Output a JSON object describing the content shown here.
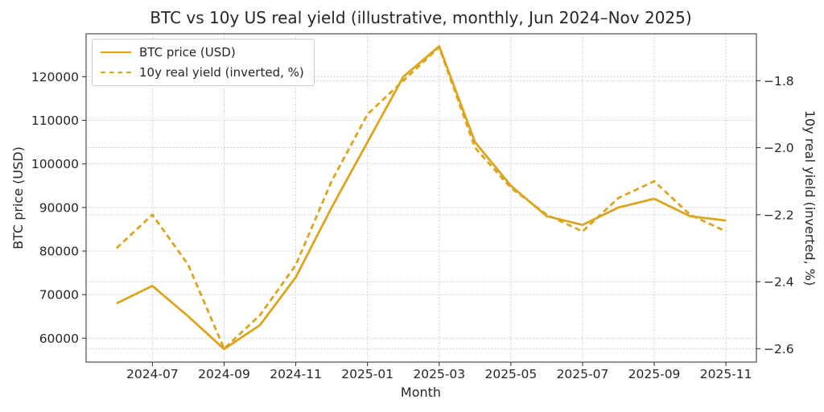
{
  "title": "BTC vs 10y US real yield (illustrative, monthly, Jun 2024–Nov 2025)",
  "colors": {
    "line": "#DAA520",
    "grid": "#c9c9c9",
    "spine": "#2b2b2b",
    "text": "#262626",
    "background": "#ffffff"
  },
  "legend": {
    "position": "upper left",
    "items": [
      {
        "label": "BTC price (USD)",
        "style": "solid"
      },
      {
        "label": "10y real yield (inverted, %)",
        "style": "dashed"
      }
    ]
  },
  "chart_data": {
    "type": "line",
    "title": "BTC vs 10y US real yield (illustrative, monthly, Jun 2024–Nov 2025)",
    "xlabel": "Month",
    "ylabel_left": "BTC price (USD)",
    "ylabel_right": "10y real yield (inverted, %)",
    "x": [
      "2024-06",
      "2024-07",
      "2024-08",
      "2024-09",
      "2024-10",
      "2024-11",
      "2024-12",
      "2025-01",
      "2025-02",
      "2025-03",
      "2025-04",
      "2025-05",
      "2025-06",
      "2025-07",
      "2025-08",
      "2025-09",
      "2025-10",
      "2025-11"
    ],
    "series": [
      {
        "name": "BTC price (USD)",
        "axis": "left",
        "style": "solid",
        "values": [
          68000,
          72000,
          65000,
          57500,
          63000,
          74000,
          90000,
          105000,
          120000,
          127000,
          105000,
          95000,
          88000,
          86000,
          90000,
          92000,
          88000,
          87000
        ]
      },
      {
        "name": "10y real yield (inverted, %)",
        "axis": "right",
        "style": "dashed",
        "values": [
          -2.3,
          -2.2,
          -2.35,
          -2.6,
          -2.5,
          -2.35,
          -2.1,
          -1.9,
          -1.8,
          -1.7,
          -2.0,
          -2.12,
          -2.2,
          -2.25,
          -2.15,
          -2.1,
          -2.2,
          -2.25
        ]
      }
    ],
    "x_tick_indices": [
      1,
      3,
      5,
      7,
      9,
      11,
      13,
      15,
      17
    ],
    "x_tick_labels": [
      "2024-07",
      "2024-09",
      "2024-11",
      "2025-01",
      "2025-03",
      "2025-05",
      "2025-07",
      "2025-09",
      "2025-11"
    ],
    "left_ticks": [
      60000,
      70000,
      80000,
      90000,
      100000,
      110000,
      120000
    ],
    "left_tick_labels": [
      "60000",
      "70000",
      "80000",
      "90000",
      "100000",
      "110000",
      "120000"
    ],
    "right_ticks": [
      -1.8,
      -2.0,
      -2.2,
      -2.4,
      -2.6
    ],
    "right_tick_labels": [
      "−1.8",
      "−2.0",
      "−2.2",
      "−2.4",
      "−2.6"
    ],
    "xlim": [
      -0.85,
      17.85
    ],
    "ylim_left": [
      54515,
      129862
    ],
    "ylim_right": [
      -2.64,
      -1.66
    ],
    "grid": true,
    "legend_position": "upper left"
  }
}
